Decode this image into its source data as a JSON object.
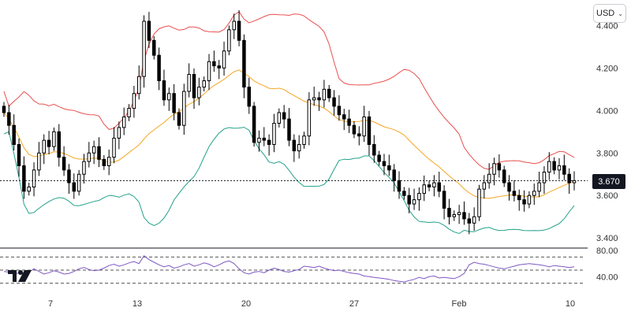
{
  "header": {
    "currency": "USD",
    "currency_chevron": "chevron-down-icon"
  },
  "last_price_label": "3.670",
  "colors": {
    "up": "#000000",
    "down": "#000000",
    "bb_upper": "#e8504f",
    "bb_middle": "#f5a623",
    "bb_lower": "#22a18a",
    "rsi": "#7e57c2"
  },
  "chart_data": [
    {
      "type": "candlestick",
      "x_ticks": [
        "7",
        "13",
        "20",
        "27",
        "Feb",
        "10"
      ],
      "y_ticks": [
        "3.400",
        "3.600",
        "3.800",
        "4.000",
        "4.200",
        "4.400"
      ],
      "ylim": [
        3.36,
        4.52
      ],
      "last_price": 3.67,
      "closes": [
        3.99,
        3.93,
        3.84,
        3.74,
        3.62,
        3.64,
        3.72,
        3.8,
        3.86,
        3.83,
        3.9,
        3.78,
        3.72,
        3.66,
        3.62,
        3.7,
        3.76,
        3.8,
        3.83,
        3.77,
        3.74,
        3.78,
        3.87,
        3.92,
        3.97,
        4.01,
        4.08,
        4.16,
        4.42,
        4.33,
        4.26,
        4.14,
        4.05,
        4.08,
        3.99,
        3.93,
        4.09,
        4.17,
        4.06,
        4.11,
        4.14,
        4.23,
        4.21,
        4.2,
        4.28,
        4.38,
        4.42,
        4.33,
        4.11,
        4.02,
        3.85,
        3.87,
        3.86,
        3.84,
        3.94,
        3.99,
        3.96,
        3.86,
        3.81,
        3.84,
        3.88,
        4.05,
        4.06,
        4.05,
        4.1,
        4.06,
        4.02,
        3.98,
        3.96,
        3.93,
        3.89,
        3.88,
        3.97,
        3.84,
        3.79,
        3.76,
        3.74,
        3.72,
        3.67,
        3.62,
        3.6,
        3.56,
        3.58,
        3.61,
        3.65,
        3.64,
        3.66,
        3.62,
        3.54,
        3.5,
        3.51,
        3.52,
        3.49,
        3.47,
        3.5,
        3.63,
        3.66,
        3.7,
        3.75,
        3.72,
        3.66,
        3.62,
        3.6,
        3.58,
        3.56,
        3.6,
        3.62,
        3.66,
        3.71,
        3.76,
        3.72,
        3.74,
        3.7,
        3.66,
        3.67
      ]
    },
    {
      "type": "line",
      "indicator": "rsi",
      "y_ticks": [
        "40.00",
        "80.00"
      ],
      "levels": [
        70,
        50,
        30
      ],
      "ylim": [
        20,
        80
      ],
      "values": [
        48,
        47,
        46,
        45,
        44,
        47,
        52,
        48,
        44,
        46,
        49,
        47,
        44,
        45,
        48,
        52,
        54,
        51,
        49,
        50,
        53,
        57,
        59,
        56,
        58,
        61,
        63,
        60,
        72,
        66,
        62,
        58,
        55,
        57,
        53,
        55,
        58,
        60,
        56,
        58,
        61,
        59,
        55,
        58,
        62,
        64,
        60,
        52,
        46,
        44,
        47,
        48,
        46,
        50,
        53,
        51,
        48,
        47,
        49,
        51,
        56,
        55,
        54,
        56,
        53,
        51,
        49,
        50,
        48,
        46,
        45,
        44,
        41,
        40,
        39,
        38,
        37,
        36,
        34,
        33,
        32,
        34,
        36,
        39,
        37,
        40,
        41,
        38,
        39,
        38,
        37,
        40,
        45,
        58,
        62,
        60,
        59,
        57,
        55,
        53,
        52,
        54,
        56,
        58,
        59,
        60,
        59,
        58,
        57,
        55,
        57,
        56,
        55,
        54,
        55
      ]
    }
  ]
}
